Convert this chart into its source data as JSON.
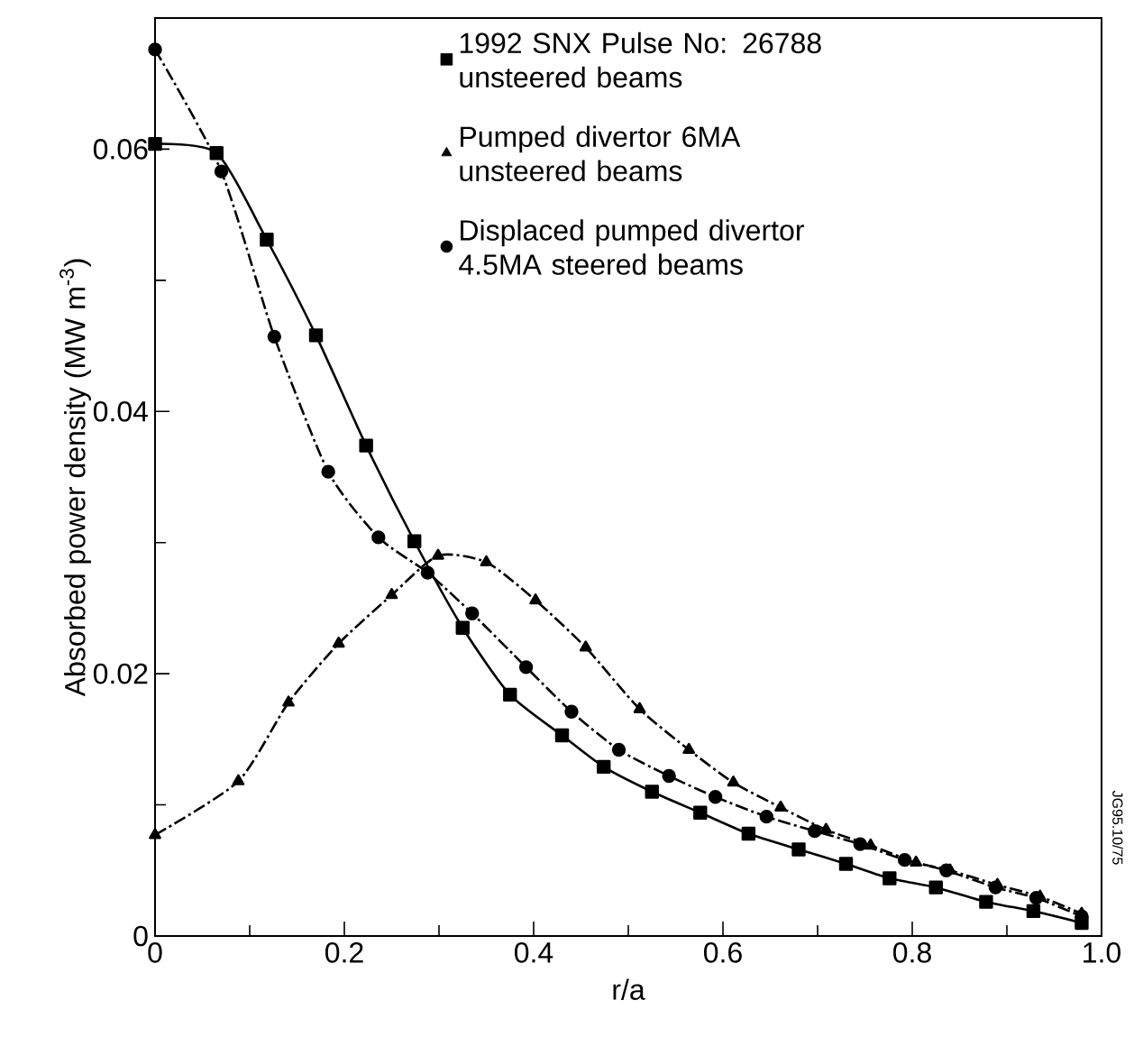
{
  "chart_data": {
    "type": "line",
    "xlabel": "r/a",
    "ylabel": "Absorbed power density (MW m$^{-3}$)",
    "xlim": [
      0,
      1.0
    ],
    "ylim": [
      0,
      0.07
    ],
    "xticks": [
      0,
      0.2,
      0.4,
      0.6,
      0.8,
      {
        "value": 1.0,
        "label": "1.0"
      }
    ],
    "yticks": [
      0,
      0.02,
      0.04,
      0.06
    ],
    "legend": "top right",
    "annotations": [
      "JG95.10/75"
    ],
    "series": [
      {
        "name": "1992 SNX Pulse No: 26788 unsteered beams",
        "color": "#000000",
        "marker": "square",
        "line_style": "solid",
        "x": [
          0,
          0.065,
          0.118,
          0.17,
          0.223,
          0.274,
          0.325,
          0.375,
          0.43,
          0.474,
          0.525,
          0.576,
          0.627,
          0.68,
          0.73,
          0.776,
          0.825,
          0.878,
          0.928,
          0.979
        ],
        "values": [
          0.0604,
          0.0597,
          0.0531,
          0.0458,
          0.0374,
          0.0301,
          0.0235,
          0.0184,
          0.0153,
          0.0129,
          0.011,
          0.0094,
          0.0078,
          0.0066,
          0.0055,
          0.0044,
          0.0037,
          0.0026,
          0.0019,
          0.001
        ]
      },
      {
        "name": "Pumped divertor 6MA unsteered beams",
        "color": "#000000",
        "marker": "triangle",
        "line_style": "dashed",
        "x": [
          0,
          0.088,
          0.141,
          0.194,
          0.25,
          0.299,
          0.35,
          0.402,
          0.455,
          0.512,
          0.564,
          0.611,
          0.661,
          0.709,
          0.756,
          0.804,
          0.84,
          0.89,
          0.935,
          0.979
        ],
        "values": [
          0.0077,
          0.0118,
          0.0178,
          0.0223,
          0.026,
          0.029,
          0.0285,
          0.0256,
          0.022,
          0.0173,
          0.0142,
          0.0117,
          0.0098,
          0.0081,
          0.0069,
          0.0056,
          0.005,
          0.0039,
          0.003,
          0.0017
        ]
      },
      {
        "name": "Displaced pumped divertor 4.5MA steered beams",
        "color": "#000000",
        "marker": "circle",
        "line_style": "dashed",
        "x": [
          0,
          0.07,
          0.126,
          0.183,
          0.236,
          0.288,
          0.335,
          0.392,
          0.44,
          0.49,
          0.543,
          0.592,
          0.646,
          0.697,
          0.745,
          0.792,
          0.836,
          0.888,
          0.931,
          0.979
        ],
        "values": [
          0.0676,
          0.0583,
          0.0457,
          0.0354,
          0.0304,
          0.0277,
          0.0246,
          0.0205,
          0.0171,
          0.0142,
          0.0122,
          0.0106,
          0.0091,
          0.008,
          0.007,
          0.0058,
          0.005,
          0.0037,
          0.0029,
          0.0015
        ]
      }
    ]
  }
}
